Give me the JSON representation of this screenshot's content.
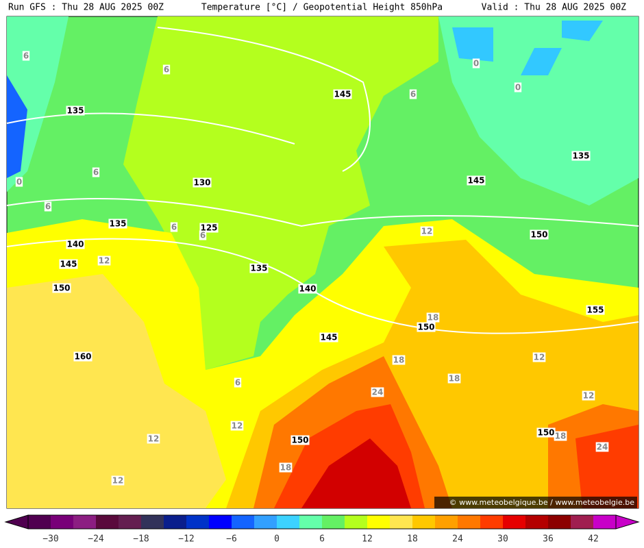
{
  "header": {
    "left": "Run GFS : Thu 28 AUG 2025 00Z",
    "center": "Temperature [°C] / Geopotential Height 850hPa",
    "right": "Valid : Thu 28 AUG 2025 00Z"
  },
  "contour_labels": [
    "6",
    "6",
    "135",
    "6",
    "145",
    "0",
    "0",
    "135",
    "0",
    "6",
    "130",
    "6",
    "6",
    "135",
    "125",
    "6",
    "145",
    "12",
    "150",
    "140",
    "145",
    "12",
    "135",
    "150",
    "140",
    "18",
    "150",
    "155",
    "145",
    "160",
    "12",
    "18",
    "6",
    "18",
    "24",
    "12",
    "12",
    "150",
    "18",
    "12",
    "150",
    "24",
    "18",
    "12"
  ],
  "watermark": "© www.meteobelgique.be / www.meteobelgie.be",
  "colorbar": {
    "ticks": [
      "−30",
      "−24",
      "−18",
      "−12",
      "−6",
      "0",
      "6",
      "12",
      "18",
      "24",
      "30",
      "36",
      "42"
    ],
    "colors": [
      "#500050",
      "#780078",
      "#8c1e82",
      "#5a0a3c",
      "#641e50",
      "#32325a",
      "#0a1e8c",
      "#0032c8",
      "#0000ff",
      "#1464ff",
      "#32a0ff",
      "#3cd2ff",
      "#64ffaa",
      "#64f064",
      "#b4ff1e",
      "#ffff00",
      "#ffe650",
      "#ffc800",
      "#ffa000",
      "#ff7800",
      "#ff3c00",
      "#e60000",
      "#b40000",
      "#8c0000",
      "#a01e50",
      "#c800c8"
    ]
  }
}
